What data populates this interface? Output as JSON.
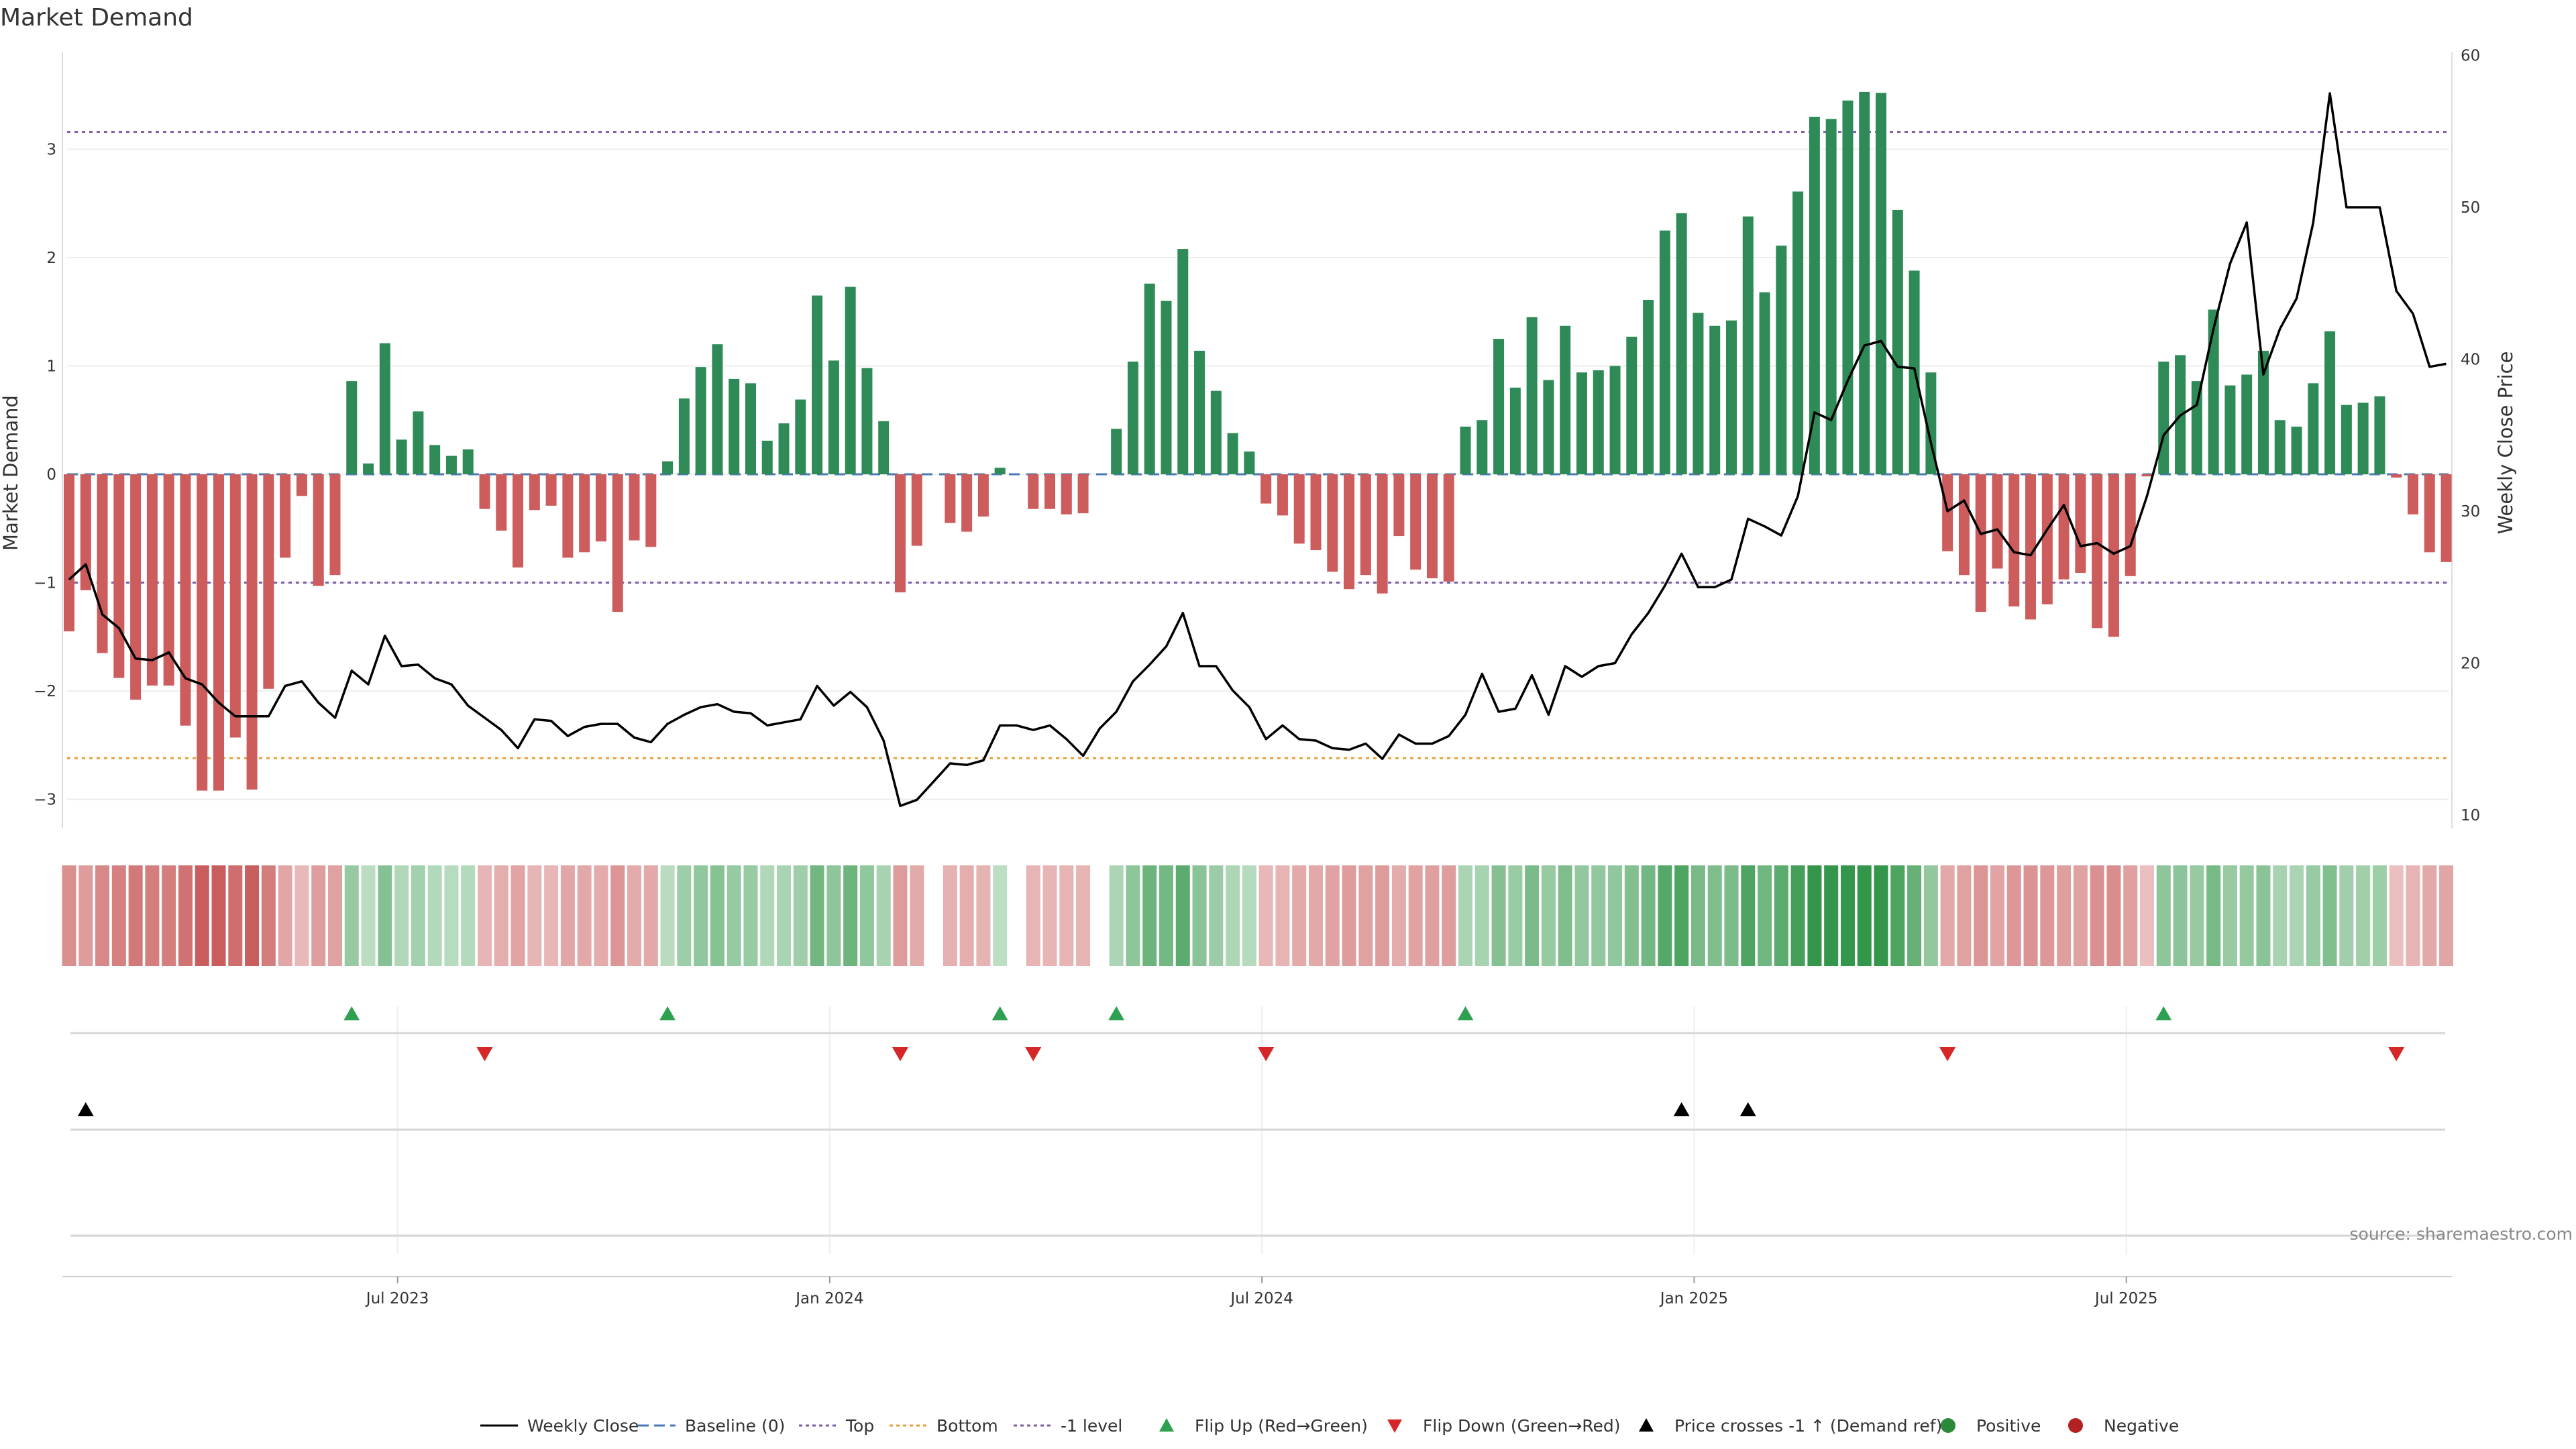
{
  "chart_data": {
    "type": "bar",
    "title": "Market Demand",
    "ylabel_left": "Market Demand",
    "ylabel_right": "Weekly Close Price",
    "ylim_left": [
      -3.3,
      3.75
    ],
    "yticks_left": [
      -3,
      -2,
      -1,
      0,
      1,
      2,
      3
    ],
    "ytick_labels_left": [
      "−3",
      "−2",
      "−1",
      "0",
      "1",
      "2",
      "3"
    ],
    "ylim_right": [
      9,
      61
    ],
    "yticks_right": [
      10,
      20,
      30,
      40,
      50,
      60
    ],
    "ytick_labels_right": [
      "10",
      "20",
      "30",
      "40",
      "50",
      "60"
    ],
    "x_tick_positions": [
      20,
      46,
      72,
      98,
      124
    ],
    "x_tick_labels": [
      "Jul 2023",
      "Jan 2024",
      "Jul 2024",
      "Jan 2025",
      "Jul 2025"
    ],
    "reference_lines": [
      {
        "name": "Top",
        "value": 3.16,
        "color": "#7b5ea7"
      },
      {
        "name": "-1 level",
        "value": -1.0,
        "color": "#7b5ea7"
      },
      {
        "name": "Bottom",
        "value": -2.62,
        "color": "#e69f3c"
      },
      {
        "name": "Baseline (0)",
        "value": 0,
        "color": "#4a7ab5"
      }
    ],
    "demand": [
      -1.45,
      -1.07,
      -1.65,
      -1.88,
      -2.08,
      -1.95,
      -1.95,
      -2.32,
      -2.92,
      -2.92,
      -2.43,
      -2.91,
      -1.98,
      -0.77,
      -0.2,
      -1.03,
      -0.93,
      0.86,
      0.1,
      1.21,
      0.32,
      0.58,
      0.27,
      0.17,
      0.23,
      -0.32,
      -0.52,
      -0.86,
      -0.33,
      -0.29,
      -0.77,
      -0.72,
      -0.62,
      -1.27,
      -0.61,
      -0.67,
      0.12,
      0.7,
      0.99,
      1.2,
      0.88,
      0.84,
      0.31,
      0.47,
      0.69,
      1.65,
      1.05,
      1.73,
      0.98,
      0.49,
      -1.09,
      -0.66,
      0,
      -0.45,
      -0.53,
      -0.39,
      0.06,
      0,
      -0.32,
      -0.32,
      -0.37,
      -0.36,
      0,
      0.42,
      1.04,
      1.76,
      1.6,
      2.08,
      1.14,
      0.77,
      0.38,
      0.21,
      -0.27,
      -0.38,
      -0.64,
      -0.7,
      -0.9,
      -1.06,
      -0.93,
      -1.1,
      -0.57,
      -0.88,
      -0.96,
      -0.99,
      0.44,
      0.5,
      1.25,
      0.8,
      1.45,
      0.87,
      1.37,
      0.94,
      0.96,
      1.0,
      1.27,
      1.61,
      2.25,
      2.41,
      1.49,
      1.37,
      1.42,
      2.38,
      1.68,
      2.11,
      2.61,
      3.3,
      3.28,
      3.45,
      3.53,
      3.52,
      2.44,
      1.88,
      0.94,
      -0.71,
      -0.93,
      -1.27,
      -0.87,
      -1.22,
      -1.34,
      -1.2,
      -0.97,
      -0.91,
      -1.42,
      -1.5,
      -0.94,
      -0.02,
      1.04,
      1.1,
      0.86,
      1.52,
      0.82,
      0.92,
      1.14,
      0.5,
      0.44,
      0.84,
      1.32,
      0.64,
      0.66,
      0.72,
      -0.03,
      -0.37,
      -0.72,
      -0.81
    ],
    "weekly_close": [
      25.5,
      26.5,
      23.2,
      22.3,
      20.3,
      20.2,
      20.7,
      19.0,
      18.6,
      17.4,
      16.5,
      16.5,
      16.5,
      18.5,
      18.8,
      17.4,
      16.4,
      19.5,
      18.6,
      21.8,
      19.8,
      19.9,
      19.0,
      18.6,
      17.2,
      16.4,
      15.6,
      14.4,
      16.3,
      16.2,
      15.2,
      15.8,
      16.0,
      16.0,
      15.1,
      14.8,
      16.0,
      16.6,
      17.1,
      17.3,
      16.8,
      16.7,
      15.9,
      16.1,
      16.3,
      18.5,
      17.2,
      18.1,
      17.1,
      14.9,
      10.6,
      11.0,
      12.2,
      13.4,
      13.3,
      13.6,
      15.9,
      15.9,
      15.6,
      15.9,
      15.0,
      13.9,
      15.7,
      16.8,
      18.8,
      19.9,
      21.1,
      23.3,
      19.8,
      19.8,
      18.2,
      17.1,
      15.0,
      15.9,
      15.0,
      14.9,
      14.4,
      14.3,
      14.7,
      13.7,
      15.3,
      14.7,
      14.7,
      15.2,
      16.6,
      19.3,
      16.8,
      17.0,
      19.2,
      16.6,
      19.8,
      19.1,
      19.8,
      20.0,
      21.9,
      23.3,
      25.1,
      27.2,
      25.0,
      25.0,
      25.5,
      29.5,
      29.0,
      28.4,
      31.0,
      36.5,
      36.0,
      38.6,
      40.9,
      41.2,
      39.5,
      39.4,
      34.5,
      30.0,
      30.7,
      28.5,
      28.8,
      27.3,
      27.1,
      28.8,
      30.4,
      27.7,
      27.9,
      27.2,
      27.7,
      31.0,
      35.0,
      36.3,
      37.0,
      42.0,
      46.3,
      49.0,
      39.0,
      42.0,
      44.0,
      49.0,
      57.5,
      50.0,
      50.0,
      50.0,
      44.5,
      43.0,
      39.5,
      39.7
    ],
    "flip_up_labels": [
      "Jun 2023",
      "Nov 2023",
      "Apr 2024",
      "May 2024",
      "Sep 2024",
      "Jul 2025"
    ],
    "flip_up_positions": [
      17,
      36,
      56,
      63,
      84,
      126
    ],
    "flip_down_labels": [
      "Aug 2023",
      "Feb 2024",
      "Apr 2024",
      "Jul 2024",
      "Apr 2025",
      "Nov 2025"
    ],
    "flip_down_positions": [
      25,
      50,
      58,
      72,
      113,
      140
    ],
    "price_cross_labels": [
      "Mar 2023",
      "Dec 2024",
      "Jan 2025"
    ],
    "price_cross_positions": [
      1,
      97,
      101
    ],
    "source": "source: sharemaestro.com",
    "legend": [
      {
        "label": "Weekly Close",
        "kind": "solid-line",
        "color": "#000000"
      },
      {
        "label": "Baseline (0)",
        "kind": "dashed-line",
        "color": "#4a7ab5"
      },
      {
        "label": "Top",
        "kind": "dotted-line",
        "color": "#7b5ea7"
      },
      {
        "label": "Bottom",
        "kind": "dotted-line",
        "color": "#e69f3c"
      },
      {
        "label": "-1 level",
        "kind": "dotted-line",
        "color": "#7b5ea7"
      },
      {
        "label": "Flip Up (Red→Green)",
        "kind": "triangle-up",
        "color": "#2ea04f"
      },
      {
        "label": "Flip Down (Green→Red)",
        "kind": "triangle-down",
        "color": "#d62728"
      },
      {
        "label": "Price crosses -1 ↑ (Demand ref)",
        "kind": "triangle-up",
        "color": "#000000"
      },
      {
        "label": "Positive",
        "kind": "circle",
        "color": "#2a8a3a"
      },
      {
        "label": "Negative",
        "kind": "circle",
        "color": "#b22222"
      }
    ],
    "colors": {
      "positive_bar": "#2e8b57",
      "negative_bar": "#cd5c5c",
      "price_line": "#000000",
      "grid": "#eeeeee",
      "axis": "#cccccc"
    }
  }
}
